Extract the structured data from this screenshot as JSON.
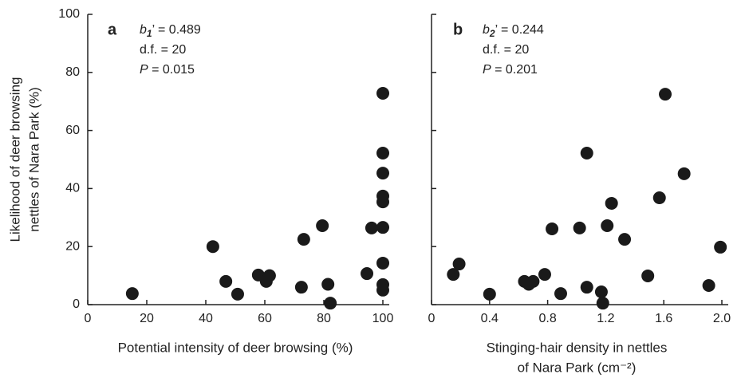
{
  "chart_data": [
    {
      "type": "scatter",
      "panel_label": "a",
      "annotation": [
        {
          "symbol": "b",
          "sub": "1",
          "rest": "’ = 0.489"
        },
        {
          "symbol": "",
          "sub": "",
          "rest": "d.f. = 20"
        },
        {
          "symbol": "P",
          "sub": "",
          "rest": " =  0.015"
        }
      ],
      "ylabel": [
        "Likelihood of deer browsing",
        "nettles of Nara Park (%)"
      ],
      "xlabel": [
        "Potential intensity of deer browsing (%)"
      ],
      "color": "#1a1a1a",
      "x": [
        15.1,
        42.4,
        46.8,
        50.8,
        57.8,
        60.5,
        61.6,
        72.4,
        73.2,
        79.5,
        81.4,
        82.2,
        94.6,
        96.2,
        100,
        100,
        100,
        100,
        100,
        100,
        100,
        100,
        100
      ],
      "y": [
        3.8,
        20,
        8,
        3.6,
        10.2,
        8,
        10,
        6,
        22.5,
        27.2,
        7,
        0.5,
        10.7,
        26.4,
        72.8,
        52.2,
        45.3,
        37.4,
        35.4,
        26.6,
        14.3,
        6.9,
        5
      ],
      "xlim": [
        0,
        100
      ],
      "xticks": [
        0,
        20,
        40,
        60,
        80,
        100
      ],
      "ylim": [
        0,
        100
      ],
      "yticks": [
        0,
        20,
        40,
        60,
        80,
        100
      ],
      "ytick_labels": true
    },
    {
      "type": "scatter",
      "panel_label": "b",
      "annotation": [
        {
          "symbol": "b",
          "sub": "2",
          "rest": "’ = 0.244"
        },
        {
          "symbol": "",
          "sub": "",
          "rest": "d.f. = 20"
        },
        {
          "symbol": "P",
          "sub": "",
          "rest": " =  0.201"
        }
      ],
      "xlabel": [
        "Stinging-hair density in nettles",
        "of Nara Park (cm⁻²)"
      ],
      "color": "#1a1a1a",
      "x": [
        0.15,
        0.19,
        0.4,
        0.64,
        0.67,
        0.7,
        0.78,
        0.83,
        0.89,
        1.02,
        1.07,
        1.07,
        1.17,
        1.18,
        1.21,
        1.24,
        1.33,
        1.49,
        1.57,
        1.61,
        1.74,
        1.91,
        1.99
      ],
      "y": [
        10.4,
        14,
        3.6,
        8,
        7,
        8,
        10.4,
        26.1,
        3.8,
        26.4,
        52.2,
        6,
        4.4,
        0.5,
        27.2,
        34.9,
        22.5,
        9.9,
        36.8,
        72.5,
        45.1,
        6.6,
        19.8
      ],
      "xlim": [
        0,
        2
      ],
      "xticks": [
        0,
        0.4,
        0.8,
        1.2,
        1.6,
        {
          "value": 2,
          "label": "2.0"
        }
      ],
      "ylim": [
        0,
        100
      ],
      "yticks": [
        0,
        20,
        40,
        60,
        80,
        100
      ],
      "ytick_labels": false
    }
  ]
}
